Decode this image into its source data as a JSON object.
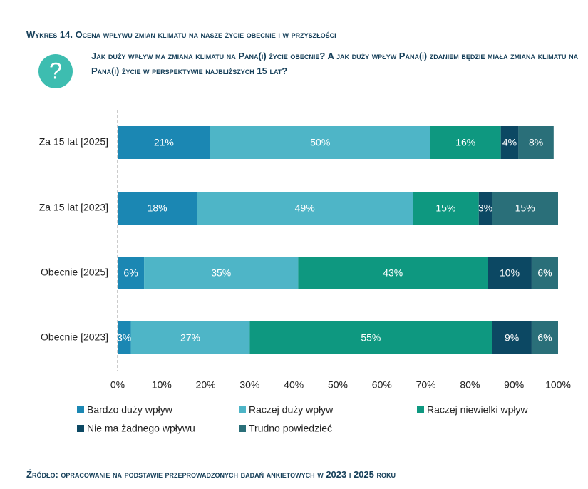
{
  "chart_data": {
    "type": "stacked-bar-horizontal",
    "title": "Wykres 14. Ocena wpływu zmian klimatu na nasze życie obecnie i w przyszłości",
    "subtitle": "Jak duży wpływ ma zmiana klimatu na Pana(i) życie obecnie? A jak duży wpływ Pana(i) zdaniem będzie miała zmiana klimatu na Pana(i) życie w perspektywie najbliższych 15 lat?",
    "source": "Źródło: opracowanie na podstawie przeprowadzonych badań ankietowych w 2023 i 2025 roku",
    "categories": [
      "Za 15 lat [2025]",
      "Za 15 lat [2023]",
      "Obecnie [2025]",
      "Obecnie [2023]"
    ],
    "series": [
      {
        "name": "Bardzo duży wpływ",
        "color": "#1b87b3",
        "values": [
          21,
          18,
          6,
          3
        ],
        "value_labels": [
          "21%",
          "18%",
          "6%",
          "3%"
        ]
      },
      {
        "name": "Raczej duży wpływ",
        "color": "#4eb5c7",
        "values": [
          50,
          49,
          35,
          27
        ],
        "value_labels": [
          "50%",
          "49%",
          "35%",
          "27%"
        ]
      },
      {
        "name": "Raczej niewielki wpływ",
        "color": "#0e9880",
        "values": [
          16,
          15,
          43,
          55
        ],
        "value_labels": [
          "16%",
          "15%",
          "43%",
          "55%"
        ]
      },
      {
        "name": "Nie ma żadnego wpływu",
        "color": "#0c4863",
        "values": [
          4,
          3,
          10,
          9
        ],
        "value_labels": [
          "4%",
          "3%",
          "10%",
          "9%"
        ]
      },
      {
        "name": "Trudno powiedzieć",
        "color": "#2a6f79",
        "values": [
          8,
          15,
          6,
          6
        ],
        "value_labels": [
          "8%",
          "15%",
          "6%",
          "6%"
        ]
      }
    ],
    "xlim": [
      0,
      100
    ],
    "xticks": [
      {
        "value": 0,
        "label": "0%"
      },
      {
        "value": 10,
        "label": "10%"
      },
      {
        "value": 20,
        "label": "20%"
      },
      {
        "value": 30,
        "label": "30%"
      },
      {
        "value": 40,
        "label": "40%"
      },
      {
        "value": 50,
        "label": "50%"
      },
      {
        "value": 60,
        "label": "60%"
      },
      {
        "value": 70,
        "label": "70%"
      },
      {
        "value": 80,
        "label": "80%"
      },
      {
        "value": 90,
        "label": "90%"
      },
      {
        "value": 100,
        "label": "100%"
      }
    ],
    "legend": "bottom"
  }
}
